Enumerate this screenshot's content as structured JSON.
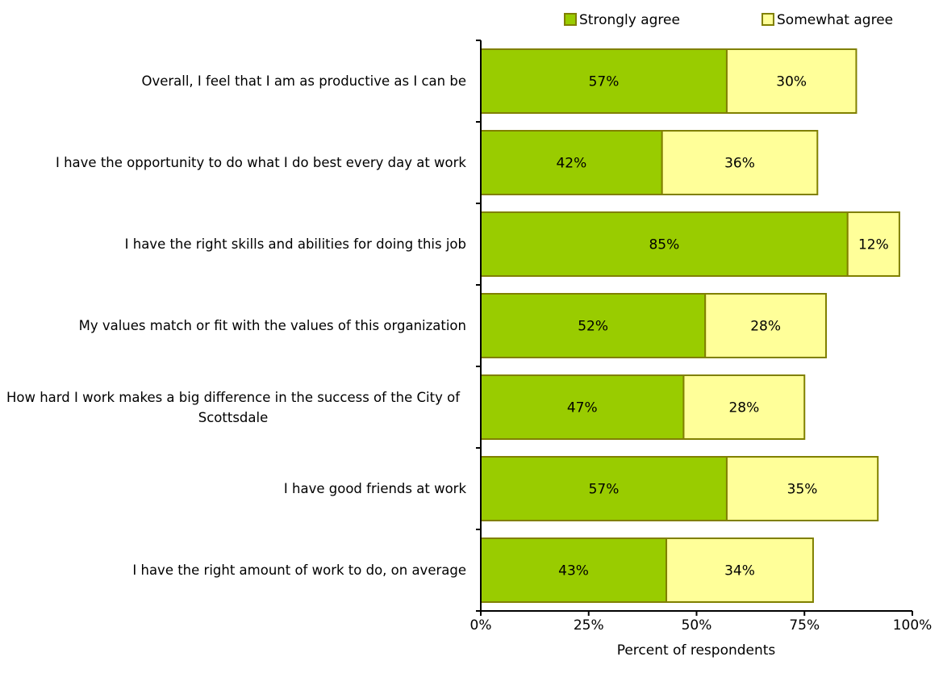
{
  "chart_data": {
    "type": "stacked-bar-horizontal",
    "categories": [
      "Overall, I feel that I am as productive as I can be",
      "I have the opportunity to do what I do best every day at work",
      "I have the right skills and abilities for doing this job",
      "My values match or fit with the values of this organization",
      "How hard I work makes a big difference in the success of the City of Scottsdale",
      "I have good friends at work",
      "I have the right amount of work to do, on average"
    ],
    "series": [
      {
        "name": "Strongly agree",
        "color": "#99cc00",
        "values": [
          57,
          42,
          85,
          52,
          47,
          57,
          43
        ],
        "value_labels": [
          "57%",
          "42%",
          "85%",
          "52%",
          "47%",
          "57%",
          "43%"
        ]
      },
      {
        "name": "Somewhat agree",
        "color": "#ffff99",
        "values": [
          30,
          36,
          12,
          28,
          28,
          35,
          34
        ],
        "value_labels": [
          "30%",
          "36%",
          "12%",
          "28%",
          "28%",
          "35%",
          "34%"
        ]
      }
    ],
    "xlabel": "Percent of respondents",
    "xlim": [
      0,
      100
    ],
    "xticks": [
      {
        "value": 0,
        "label": "0%"
      },
      {
        "value": 25,
        "label": "25%"
      },
      {
        "value": 50,
        "label": "50%"
      },
      {
        "value": 75,
        "label": "75%"
      },
      {
        "value": 100,
        "label": "100%"
      }
    ],
    "legend": "top-right"
  }
}
